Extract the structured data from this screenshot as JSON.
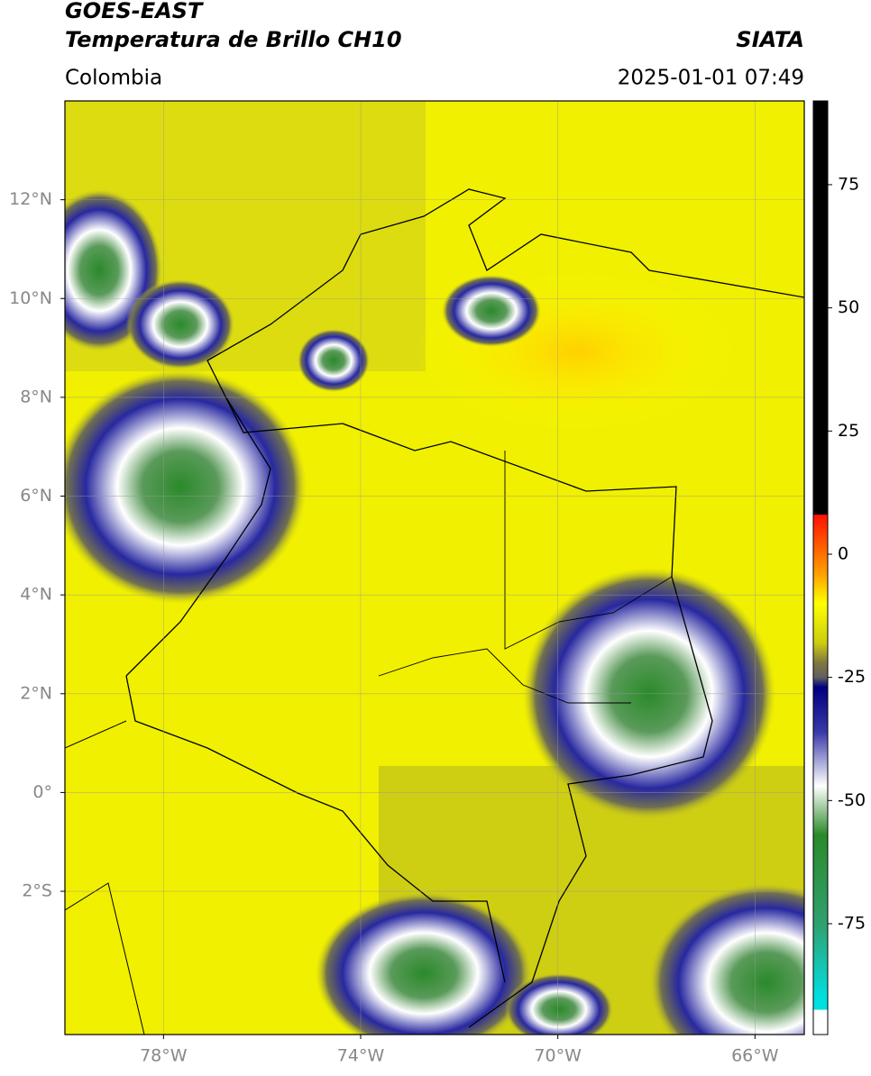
{
  "header": {
    "title": "GOES-EAST",
    "subtitle": "Temperatura de Brillo CH10",
    "source": "SIATA",
    "region": "Colombia",
    "datetime": "2025-01-01 07:49"
  },
  "map": {
    "xlim": [
      -80,
      -65
    ],
    "ylim": [
      -4.9,
      14
    ],
    "xticks": [
      {
        "value": -78,
        "label": "78°W"
      },
      {
        "value": -74,
        "label": "74°W"
      },
      {
        "value": -70,
        "label": "70°W"
      },
      {
        "value": -66,
        "label": "66°W"
      }
    ],
    "yticks": [
      {
        "value": 12,
        "label": "12°N"
      },
      {
        "value": 10,
        "label": "10°N"
      },
      {
        "value": 8,
        "label": "8°N"
      },
      {
        "value": 6,
        "label": "6°N"
      },
      {
        "value": 4,
        "label": "4°N"
      },
      {
        "value": 2,
        "label": "2°N"
      },
      {
        "value": 0,
        "label": "0°"
      },
      {
        "value": -2,
        "label": "2°S"
      }
    ],
    "grid": true
  },
  "colorbar": {
    "lim": [
      -97.5,
      92
    ],
    "ticks": [
      75,
      50,
      25,
      0,
      -25,
      -50,
      -75
    ],
    "stops": [
      {
        "value": 92,
        "color": "#000000"
      },
      {
        "value": 8,
        "color": "#000000"
      },
      {
        "value": 8,
        "color": "#ff1000"
      },
      {
        "value": -4,
        "color": "#ffa000"
      },
      {
        "value": -10,
        "color": "#ffff00"
      },
      {
        "value": -18,
        "color": "#cccc10"
      },
      {
        "value": -22,
        "color": "#807840"
      },
      {
        "value": -25,
        "color": "#606060"
      },
      {
        "value": -27,
        "color": "#000080"
      },
      {
        "value": -36,
        "color": "#3838a8"
      },
      {
        "value": -47,
        "color": "#ffffff"
      },
      {
        "value": -57,
        "color": "#2a8a2a"
      },
      {
        "value": -75,
        "color": "#30a070"
      },
      {
        "value": -90,
        "color": "#00e0e0"
      },
      {
        "value": -92.5,
        "color": "#00e0e0"
      },
      {
        "value": -92.5,
        "color": "#ffffff"
      },
      {
        "value": -97.5,
        "color": "#ffffff"
      }
    ]
  }
}
